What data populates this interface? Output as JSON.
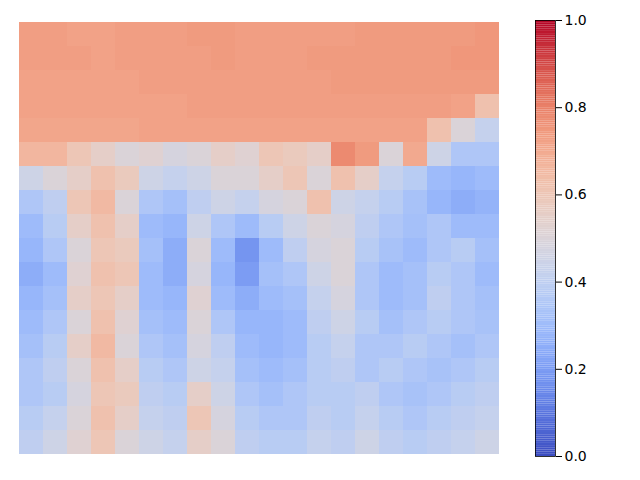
{
  "chart_data": {
    "type": "heatmap",
    "tick_labels": false,
    "zlim": [
      0,
      1
    ],
    "zticks": [
      {
        "value": 0,
        "label": "0.0"
      },
      {
        "value": 0.2,
        "label": "0.2"
      },
      {
        "value": 0.4,
        "label": "0.4"
      },
      {
        "value": 0.6,
        "label": "0.6"
      },
      {
        "value": 0.8,
        "label": "0.8"
      },
      {
        "value": 1,
        "label": "1.0"
      }
    ],
    "cells": [
      [
        0.73,
        0.73,
        0.72,
        0.72,
        0.73,
        0.73,
        0.73,
        0.74,
        0.74,
        0.73,
        0.73,
        0.73,
        0.73,
        0.73,
        0.74,
        0.74,
        0.74,
        0.74,
        0.74,
        0.75
      ],
      [
        0.73,
        0.73,
        0.73,
        0.72,
        0.73,
        0.73,
        0.73,
        0.73,
        0.74,
        0.73,
        0.73,
        0.73,
        0.74,
        0.74,
        0.74,
        0.74,
        0.74,
        0.74,
        0.75,
        0.75
      ],
      [
        0.72,
        0.72,
        0.72,
        0.72,
        0.72,
        0.73,
        0.73,
        0.73,
        0.73,
        0.73,
        0.73,
        0.73,
        0.73,
        0.74,
        0.74,
        0.74,
        0.74,
        0.74,
        0.74,
        0.74
      ],
      [
        0.72,
        0.72,
        0.72,
        0.72,
        0.72,
        0.72,
        0.72,
        0.73,
        0.73,
        0.73,
        0.73,
        0.73,
        0.73,
        0.73,
        0.73,
        0.73,
        0.73,
        0.73,
        0.72,
        0.62
      ],
      [
        0.71,
        0.71,
        0.71,
        0.71,
        0.71,
        0.72,
        0.72,
        0.72,
        0.72,
        0.72,
        0.72,
        0.72,
        0.72,
        0.72,
        0.72,
        0.72,
        0.72,
        0.62,
        0.5,
        0.42
      ],
      [
        0.66,
        0.66,
        0.6,
        0.55,
        0.5,
        0.52,
        0.48,
        0.5,
        0.55,
        0.52,
        0.6,
        0.58,
        0.55,
        0.78,
        0.74,
        0.5,
        0.7,
        0.45,
        0.35,
        0.35
      ],
      [
        0.45,
        0.5,
        0.55,
        0.62,
        0.58,
        0.45,
        0.42,
        0.45,
        0.5,
        0.5,
        0.55,
        0.6,
        0.5,
        0.62,
        0.55,
        0.42,
        0.38,
        0.3,
        0.28,
        0.3
      ],
      [
        0.35,
        0.4,
        0.6,
        0.65,
        0.5,
        0.35,
        0.32,
        0.4,
        0.45,
        0.42,
        0.48,
        0.5,
        0.62,
        0.45,
        0.42,
        0.38,
        0.33,
        0.28,
        0.25,
        0.27
      ],
      [
        0.3,
        0.38,
        0.55,
        0.62,
        0.55,
        0.3,
        0.28,
        0.45,
        0.35,
        0.3,
        0.38,
        0.45,
        0.5,
        0.48,
        0.4,
        0.35,
        0.32,
        0.35,
        0.3,
        0.3
      ],
      [
        0.28,
        0.35,
        0.5,
        0.6,
        0.58,
        0.32,
        0.25,
        0.5,
        0.3,
        0.18,
        0.3,
        0.4,
        0.48,
        0.5,
        0.38,
        0.33,
        0.3,
        0.35,
        0.38,
        0.32
      ],
      [
        0.25,
        0.3,
        0.52,
        0.62,
        0.6,
        0.3,
        0.25,
        0.48,
        0.28,
        0.2,
        0.32,
        0.35,
        0.45,
        0.5,
        0.35,
        0.3,
        0.32,
        0.38,
        0.35,
        0.3
      ],
      [
        0.28,
        0.32,
        0.55,
        0.6,
        0.55,
        0.3,
        0.28,
        0.52,
        0.3,
        0.25,
        0.3,
        0.32,
        0.42,
        0.48,
        0.35,
        0.3,
        0.32,
        0.4,
        0.35,
        0.32
      ],
      [
        0.3,
        0.35,
        0.5,
        0.62,
        0.52,
        0.32,
        0.3,
        0.5,
        0.35,
        0.28,
        0.28,
        0.3,
        0.4,
        0.45,
        0.38,
        0.32,
        0.35,
        0.38,
        0.35,
        0.33
      ],
      [
        0.32,
        0.38,
        0.55,
        0.65,
        0.5,
        0.35,
        0.32,
        0.48,
        0.4,
        0.3,
        0.28,
        0.3,
        0.38,
        0.42,
        0.35,
        0.35,
        0.38,
        0.35,
        0.32,
        0.35
      ],
      [
        0.35,
        0.4,
        0.5,
        0.62,
        0.55,
        0.38,
        0.35,
        0.45,
        0.42,
        0.32,
        0.3,
        0.32,
        0.38,
        0.4,
        0.35,
        0.38,
        0.35,
        0.33,
        0.35,
        0.38
      ],
      [
        0.35,
        0.38,
        0.48,
        0.6,
        0.58,
        0.4,
        0.38,
        0.55,
        0.45,
        0.35,
        0.32,
        0.35,
        0.38,
        0.38,
        0.4,
        0.35,
        0.33,
        0.35,
        0.38,
        0.4
      ],
      [
        0.38,
        0.42,
        0.5,
        0.62,
        0.55,
        0.42,
        0.4,
        0.6,
        0.48,
        0.38,
        0.35,
        0.35,
        0.4,
        0.38,
        0.42,
        0.38,
        0.35,
        0.38,
        0.4,
        0.42
      ],
      [
        0.4,
        0.45,
        0.52,
        0.6,
        0.5,
        0.45,
        0.42,
        0.55,
        0.5,
        0.4,
        0.38,
        0.38,
        0.42,
        0.4,
        0.45,
        0.4,
        0.38,
        0.4,
        0.42,
        0.45
      ]
    ]
  }
}
